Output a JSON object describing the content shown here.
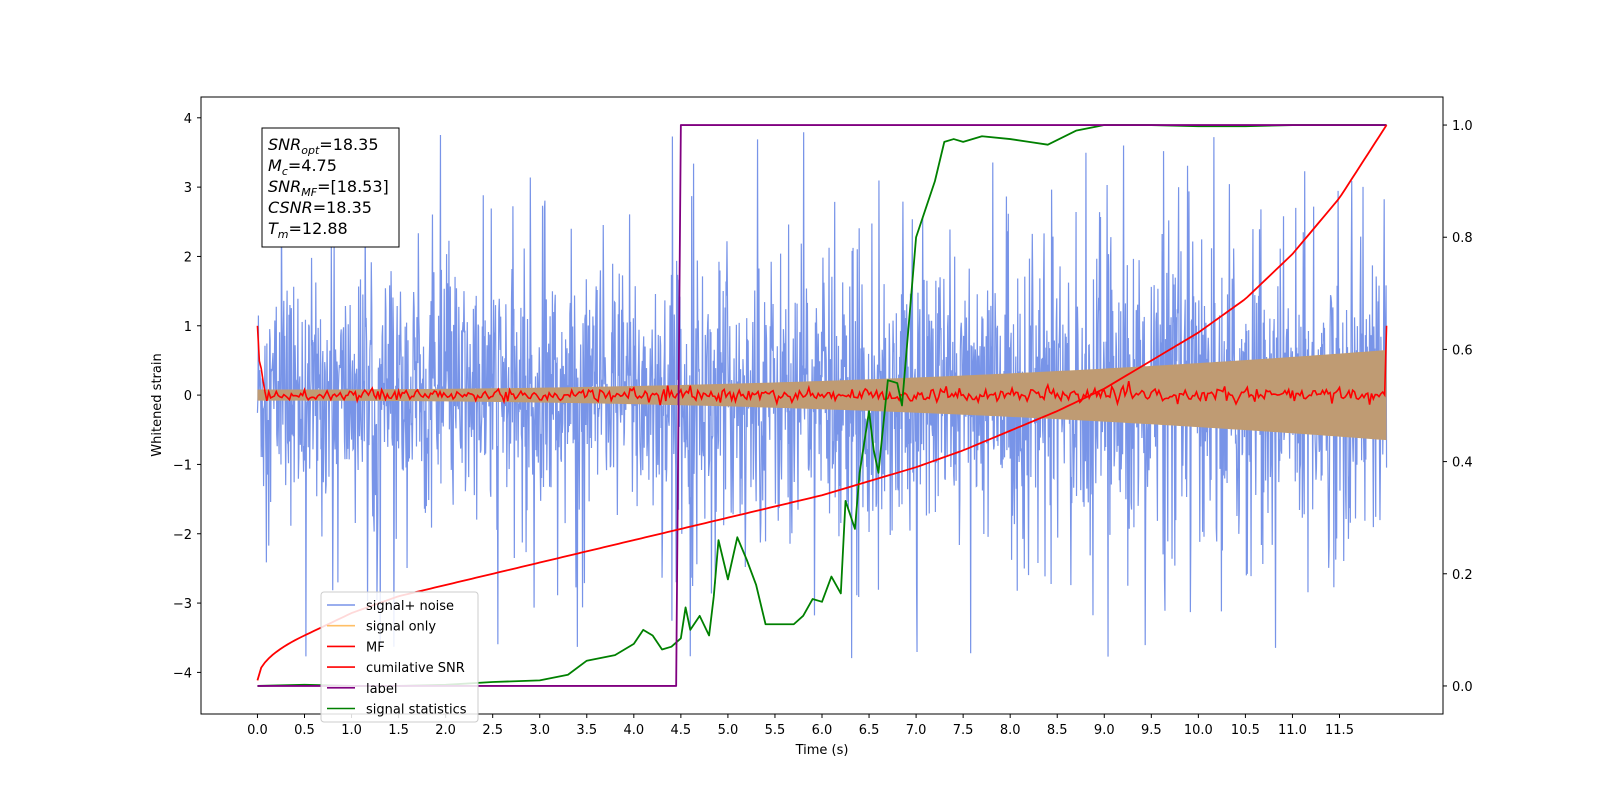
{
  "chart_data": {
    "type": "line",
    "title": "",
    "xlabel": "Time (s)",
    "ylabel": "Whitened strain",
    "xlim": [
      -0.6,
      12.6
    ],
    "ylim": [
      -4.6,
      4.3
    ],
    "y2lim": [
      -0.05,
      1.05
    ],
    "xticks": [
      0.0,
      0.5,
      1.0,
      1.5,
      2.0,
      2.5,
      3.0,
      3.5,
      4.0,
      4.5,
      5.0,
      5.5,
      6.0,
      6.5,
      7.0,
      7.5,
      8.0,
      8.5,
      9.0,
      9.5,
      10.0,
      10.5,
      11.0,
      11.5
    ],
    "xtick_labels": [
      "0.0",
      "0.5",
      "1.0",
      "1.5",
      "2.0",
      "2.5",
      "3.0",
      "3.5",
      "4.0",
      "4.5",
      "5.0",
      "5.5",
      "6.0",
      "6.5",
      "7.0",
      "7.5",
      "8.0",
      "8.5",
      "9.0",
      "9.5",
      "10.0",
      "10.5",
      "11.0",
      "11.5"
    ],
    "yticks": [
      -4,
      -3,
      -2,
      -1,
      0,
      1,
      2,
      3,
      4
    ],
    "ytick_labels": [
      "−4",
      "−3",
      "−2",
      "−1",
      "0",
      "1",
      "2",
      "3",
      "4"
    ],
    "y2ticks": [
      0.0,
      0.2,
      0.4,
      0.6,
      0.8,
      1.0
    ],
    "y2tick_labels": [
      "0.0",
      "0.2",
      "0.4",
      "0.6",
      "0.8",
      "1.0"
    ],
    "grid": false,
    "legend_position": "lower-left",
    "series": [
      {
        "name": "signal+ noise",
        "color": "#7894e8",
        "axis": "left",
        "kind": "noise",
        "x_range": [
          0.0,
          12.0
        ],
        "envelope_start": 1.5,
        "envelope_end": 2.0,
        "spike_max": 3.9
      },
      {
        "name": "signal only",
        "color": "#ffbf66",
        "axis": "left",
        "kind": "chirp-envelope",
        "x_range": [
          0.0,
          12.0
        ],
        "amplitude_start": 0.08,
        "amplitude_end": 0.65
      },
      {
        "name": "MF",
        "color": "#ff0000",
        "axis": "left",
        "kind": "mf",
        "x_range": [
          0.0,
          12.0
        ],
        "start_value": 1.0,
        "end_value": 1.0,
        "ripple": 0.06
      },
      {
        "name": "cumilative SNR",
        "color": "#ff0000",
        "axis": "right",
        "x": [
          0.0,
          0.5,
          1.0,
          1.5,
          2.0,
          2.5,
          3.0,
          3.5,
          4.0,
          4.5,
          5.0,
          5.5,
          6.0,
          6.5,
          7.0,
          7.5,
          8.0,
          8.5,
          9.0,
          9.5,
          10.0,
          10.5,
          11.0,
          11.5,
          12.0
        ],
        "y": [
          0.01,
          0.09,
          0.13,
          0.16,
          0.18,
          0.2,
          0.22,
          0.24,
          0.26,
          0.28,
          0.3,
          0.32,
          0.34,
          0.365,
          0.39,
          0.42,
          0.455,
          0.49,
          0.53,
          0.58,
          0.63,
          0.69,
          0.77,
          0.87,
          1.0
        ]
      },
      {
        "name": "label",
        "color": "#800080",
        "axis": "right",
        "x": [
          0.0,
          4.45,
          4.5,
          12.0
        ],
        "y": [
          0.0,
          0.0,
          1.0,
          1.0
        ]
      },
      {
        "name": "signal statistics",
        "color": "#008000",
        "axis": "right",
        "x": [
          0.0,
          0.5,
          1.0,
          1.5,
          2.0,
          2.5,
          3.0,
          3.3,
          3.5,
          3.8,
          4.0,
          4.1,
          4.2,
          4.3,
          4.4,
          4.5,
          4.55,
          4.6,
          4.7,
          4.8,
          4.85,
          4.9,
          5.0,
          5.1,
          5.2,
          5.3,
          5.4,
          5.5,
          5.6,
          5.7,
          5.8,
          5.9,
          6.0,
          6.1,
          6.2,
          6.25,
          6.3,
          6.35,
          6.4,
          6.5,
          6.55,
          6.6,
          6.7,
          6.8,
          6.85,
          6.9,
          7.0,
          7.1,
          7.2,
          7.3,
          7.4,
          7.5,
          7.7,
          8.0,
          8.2,
          8.4,
          8.7,
          9.0,
          9.5,
          10.0,
          10.5,
          11.0,
          12.0
        ],
        "y": [
          0.0,
          0.002,
          0.0,
          0.0,
          0.002,
          0.007,
          0.01,
          0.02,
          0.045,
          0.055,
          0.075,
          0.1,
          0.09,
          0.065,
          0.07,
          0.085,
          0.14,
          0.1,
          0.125,
          0.09,
          0.16,
          0.26,
          0.19,
          0.265,
          0.225,
          0.18,
          0.11,
          0.11,
          0.11,
          0.11,
          0.125,
          0.155,
          0.15,
          0.195,
          0.165,
          0.33,
          0.305,
          0.28,
          0.38,
          0.49,
          0.42,
          0.38,
          0.545,
          0.54,
          0.5,
          0.6,
          0.8,
          0.85,
          0.9,
          0.97,
          0.975,
          0.97,
          0.98,
          0.975,
          0.97,
          0.965,
          0.99,
          1.0,
          1.0,
          0.998,
          0.998,
          1.0,
          1.0
        ]
      }
    ],
    "annotation": {
      "lines": [
        {
          "base": "SNR",
          "sub": "opt",
          "value": "=18.35"
        },
        {
          "base": "M",
          "sub": "c",
          "value": "=4.75"
        },
        {
          "base": "SNR",
          "sub": "MF",
          "value": "=[18.53]"
        },
        {
          "base": "CSNR",
          "sub": "",
          "value": "=18.35"
        },
        {
          "base": "T",
          "sub": "m",
          "value": "=12.88"
        }
      ]
    }
  }
}
